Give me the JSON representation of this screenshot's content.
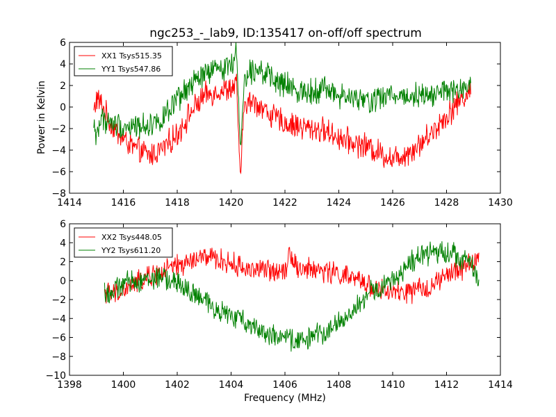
{
  "figure": {
    "title": "ngc253_-_lab9, ID:135417 on-off/off spectrum",
    "ylabel": "Power in Kelvin",
    "xlabel": "Frequency (MHz)"
  },
  "colors": {
    "red": "#ff0000",
    "green": "#008000"
  },
  "chart_data": [
    {
      "type": "line",
      "xlim": [
        1414,
        1430
      ],
      "ylim": [
        -8,
        6
      ],
      "xticks": [
        1414,
        1416,
        1418,
        1420,
        1422,
        1424,
        1426,
        1428,
        1430
      ],
      "yticks": [
        -8,
        -6,
        -4,
        -2,
        0,
        2,
        4,
        6
      ],
      "legend_position": "top-left",
      "series": [
        {
          "name": "XX1 Tsys515.35",
          "color": "#ff0000",
          "x": [
            1414.9,
            1415.0,
            1415.2,
            1415.5,
            1416.0,
            1416.5,
            1417.0,
            1417.5,
            1418.0,
            1418.5,
            1419.0,
            1419.5,
            1420.0,
            1420.2,
            1420.35,
            1420.5,
            1421.0,
            1421.5,
            1422.0,
            1422.5,
            1423.0,
            1423.5,
            1424.0,
            1424.5,
            1425.0,
            1425.5,
            1426.0,
            1426.5,
            1427.0,
            1427.5,
            1428.0,
            1428.5,
            1428.9
          ],
          "y": [
            -0.5,
            0.8,
            0.2,
            -1.5,
            -3.0,
            -4.0,
            -4.5,
            -3.8,
            -2.5,
            -0.5,
            1.0,
            1.5,
            1.7,
            2.0,
            -6.6,
            0.5,
            0.3,
            -0.8,
            -1.5,
            -1.8,
            -2.0,
            -2.2,
            -2.8,
            -3.3,
            -3.6,
            -4.2,
            -4.8,
            -4.3,
            -3.5,
            -2.2,
            -0.8,
            0.6,
            1.5
          ]
        },
        {
          "name": "YY1 Tsys547.86",
          "color": "#008000",
          "x": [
            1414.9,
            1415.0,
            1415.2,
            1415.5,
            1416.0,
            1416.5,
            1417.0,
            1417.5,
            1418.0,
            1418.5,
            1419.0,
            1419.5,
            1420.0,
            1420.2,
            1420.35,
            1420.5,
            1421.0,
            1421.5,
            1422.0,
            1422.5,
            1423.0,
            1423.5,
            1424.0,
            1424.5,
            1425.0,
            1425.5,
            1426.0,
            1426.5,
            1427.0,
            1427.5,
            1428.0,
            1428.5,
            1428.9
          ],
          "y": [
            -2.0,
            -2.5,
            -1.0,
            -1.5,
            -1.8,
            -1.8,
            -1.6,
            -1.0,
            0.5,
            2.0,
            3.0,
            3.5,
            4.0,
            5.0,
            -4.0,
            3.0,
            3.8,
            2.5,
            2.0,
            1.5,
            1.5,
            1.8,
            1.0,
            0.8,
            0.5,
            0.8,
            1.2,
            1.0,
            1.2,
            1.2,
            1.5,
            1.5,
            1.8
          ]
        }
      ]
    },
    {
      "type": "line",
      "xlim": [
        1398,
        1414
      ],
      "ylim": [
        -10,
        6
      ],
      "xticks": [
        1398,
        1400,
        1402,
        1404,
        1406,
        1408,
        1410,
        1412,
        1414
      ],
      "yticks": [
        -10,
        -8,
        -6,
        -4,
        -2,
        0,
        2,
        4,
        6
      ],
      "legend_position": "top-left",
      "series": [
        {
          "name": "XX2 Tsys448.05",
          "color": "#ff0000",
          "x": [
            1399.3,
            1399.5,
            1400.0,
            1400.5,
            1401.0,
            1401.5,
            1402.0,
            1402.5,
            1403.0,
            1403.5,
            1404.0,
            1404.5,
            1405.0,
            1405.5,
            1406.0,
            1406.2,
            1406.5,
            1407.0,
            1407.5,
            1408.0,
            1408.5,
            1409.0,
            1409.5,
            1410.0,
            1410.5,
            1411.0,
            1411.5,
            1412.0,
            1412.5,
            1413.0,
            1413.2
          ],
          "y": [
            -1.0,
            -1.5,
            -1.2,
            -0.2,
            0.5,
            1.0,
            1.5,
            2.0,
            2.5,
            2.2,
            1.8,
            1.3,
            1.2,
            1.0,
            1.3,
            3.0,
            1.2,
            1.2,
            1.0,
            0.7,
            0.2,
            -0.3,
            -1.0,
            -1.3,
            -1.3,
            -1.0,
            -0.5,
            0.5,
            1.2,
            2.0,
            2.5
          ]
        },
        {
          "name": "YY2 Tsys611.20",
          "color": "#008000",
          "x": [
            1399.3,
            1399.5,
            1400.0,
            1400.5,
            1401.0,
            1401.5,
            1402.0,
            1402.5,
            1403.0,
            1403.5,
            1404.0,
            1404.5,
            1405.0,
            1405.5,
            1406.0,
            1406.5,
            1407.0,
            1407.5,
            1408.0,
            1408.5,
            1409.0,
            1409.3,
            1409.5,
            1410.0,
            1410.5,
            1411.0,
            1411.5,
            1412.0,
            1412.5,
            1413.0,
            1413.2
          ],
          "y": [
            -1.0,
            -1.5,
            -0.3,
            0.0,
            0.2,
            0.3,
            -0.3,
            -1.2,
            -2.2,
            -3.0,
            -3.8,
            -4.2,
            -5.0,
            -5.8,
            -6.2,
            -6.3,
            -6.0,
            -5.3,
            -4.5,
            -3.3,
            -1.8,
            -0.8,
            -1.0,
            0.0,
            1.5,
            2.5,
            3.0,
            3.2,
            2.5,
            1.5,
            -0.5
          ]
        }
      ]
    }
  ]
}
